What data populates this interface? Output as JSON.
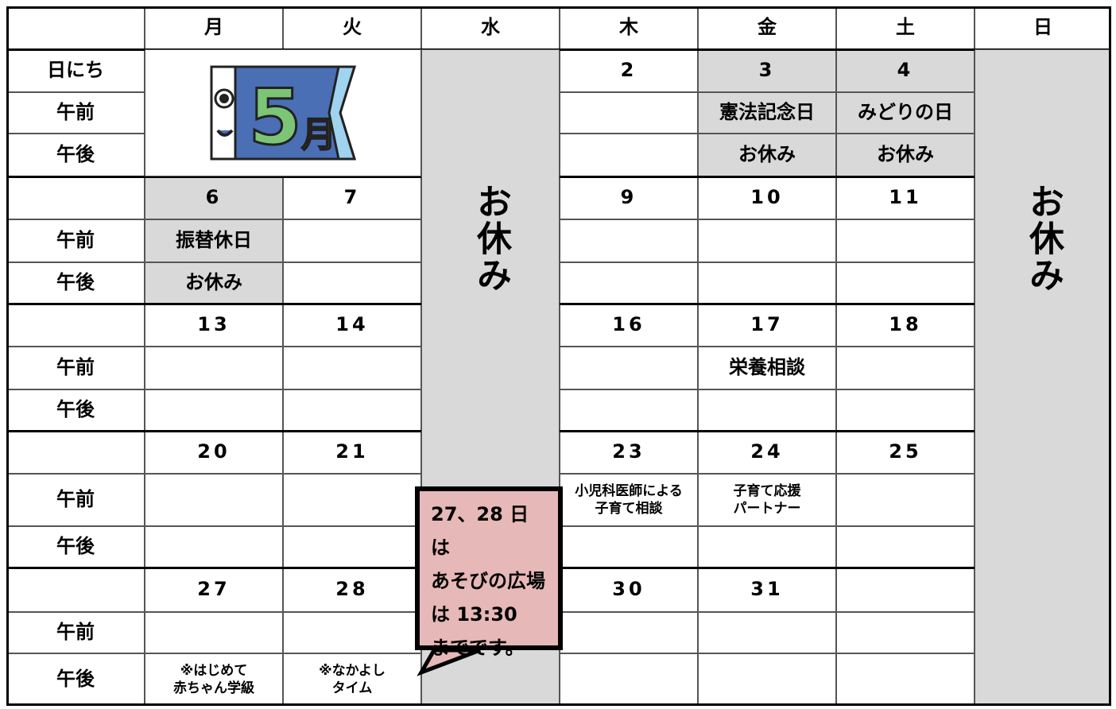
{
  "days": [
    "月",
    "火",
    "水",
    "木",
    "金",
    "土",
    "日"
  ],
  "labels": {
    "date": "日にち",
    "am": "午前",
    "pm": "午後"
  },
  "closed_label": "お休み",
  "banner": {
    "month_number": "5",
    "month_unit": "月"
  },
  "weeks": [
    {
      "dates": [
        null,
        null,
        null,
        "2",
        "3",
        "4",
        null
      ],
      "am": [
        null,
        null,
        null,
        null,
        "憲法記念日",
        "みどりの日",
        null
      ],
      "pm": [
        null,
        null,
        null,
        null,
        "お休み",
        "お休み",
        null
      ]
    },
    {
      "dates": [
        "6",
        "7",
        null,
        "9",
        "10",
        "11",
        null
      ],
      "am": [
        "振替休日",
        null,
        null,
        null,
        null,
        null,
        null
      ],
      "pm": [
        "お休み",
        null,
        null,
        null,
        null,
        null,
        null
      ]
    },
    {
      "dates": [
        "13",
        "14",
        null,
        "16",
        "17",
        "18",
        null
      ],
      "am": [
        null,
        null,
        null,
        null,
        "栄養相談",
        null,
        null
      ],
      "pm": [
        null,
        null,
        null,
        null,
        null,
        null,
        null
      ]
    },
    {
      "dates": [
        "20",
        "21",
        null,
        "23",
        "24",
        "25",
        null
      ],
      "am": [
        null,
        null,
        null,
        "小児科医師による\n子育て相談",
        "子育て応援\nパートナー",
        null,
        null
      ],
      "pm": [
        null,
        null,
        null,
        null,
        null,
        null,
        null
      ]
    },
    {
      "dates": [
        "27",
        "28",
        null,
        "30",
        "31",
        null,
        null
      ],
      "am": [
        null,
        null,
        null,
        null,
        null,
        null,
        null
      ],
      "pm": [
        "※はじめて\n赤ちゃん学級",
        "※なかよし\nタイム",
        null,
        null,
        null,
        null,
        null
      ]
    }
  ],
  "note": {
    "lines": [
      "27、28 日は",
      "あそびの広場は 13:30",
      "までです。"
    ]
  }
}
